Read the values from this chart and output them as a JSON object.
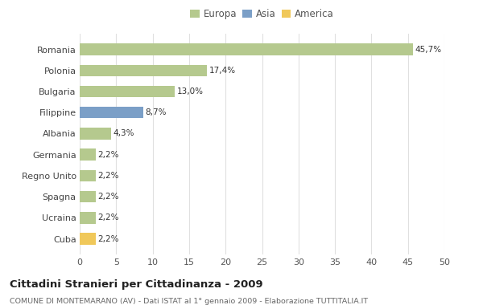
{
  "categories": [
    "Romania",
    "Polonia",
    "Bulgaria",
    "Filippine",
    "Albania",
    "Germania",
    "Regno Unito",
    "Spagna",
    "Ucraina",
    "Cuba"
  ],
  "values": [
    45.7,
    17.4,
    13.0,
    8.7,
    4.3,
    2.2,
    2.2,
    2.2,
    2.2,
    2.2
  ],
  "labels": [
    "45,7%",
    "17,4%",
    "13,0%",
    "8,7%",
    "4,3%",
    "2,2%",
    "2,2%",
    "2,2%",
    "2,2%",
    "2,2%"
  ],
  "bar_colors": [
    "#b5c98e",
    "#b5c98e",
    "#b5c98e",
    "#7b9fc7",
    "#b5c98e",
    "#b5c98e",
    "#b5c98e",
    "#b5c98e",
    "#b5c98e",
    "#f0c85a"
  ],
  "legend_labels": [
    "Europa",
    "Asia",
    "America"
  ],
  "legend_colors": [
    "#b5c98e",
    "#7b9fc7",
    "#f0c85a"
  ],
  "title": "Cittadini Stranieri per Cittadinanza - 2009",
  "subtitle": "COMUNE DI MONTEMARANO (AV) - Dati ISTAT al 1° gennaio 2009 - Elaborazione TUTTITALIA.IT",
  "xlim": [
    0,
    50
  ],
  "xticks": [
    0,
    5,
    10,
    15,
    20,
    25,
    30,
    35,
    40,
    45,
    50
  ],
  "background_color": "#ffffff",
  "grid_color": "#e0e0e0",
  "bar_height": 0.55,
  "label_fontsize": 7.5,
  "ytick_fontsize": 8,
  "xtick_fontsize": 8
}
